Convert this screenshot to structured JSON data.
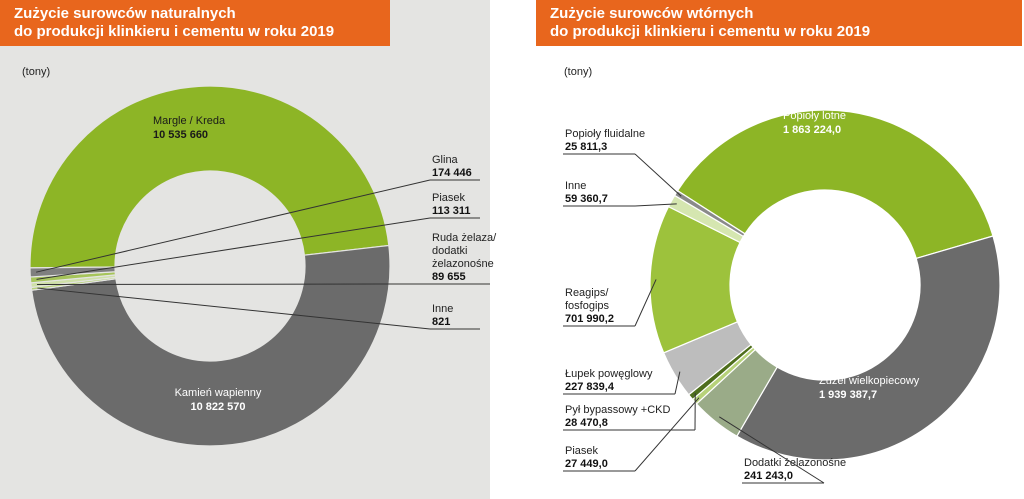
{
  "chart_data": [
    {
      "type": "donut",
      "title": "Zużycie surowców naturalnych\ndo produkcji klinkieru i cementu w roku 2019",
      "title_lines": [
        "Zużycie surowców naturalnych",
        "do produkcji klinkieru i cementu w roku 2019"
      ],
      "unit": "(tony)",
      "slices": [
        {
          "name": "Margle / Kreda",
          "value": 10535660,
          "label": "10 535 660",
          "color": "#8db526"
        },
        {
          "name": "Kamień wapienny",
          "value": 10822570,
          "label": "10 822 570",
          "color": "#6b6b6b"
        },
        {
          "name": "Inne",
          "value": 821,
          "label": "821",
          "color": "#b7d27a"
        },
        {
          "name": "Ruda żelaza/ dodatki żelazonośne",
          "value": 89655,
          "label": "89 655",
          "color": "#cfe0a8"
        },
        {
          "name": "Piasek",
          "value": 113311,
          "label": "113 311",
          "color": "#a6c45a"
        },
        {
          "name": "Glina",
          "value": 174446,
          "label": "174 446",
          "color": "#7f7f7f"
        }
      ]
    },
    {
      "type": "donut",
      "title": "Zużycie surowców wtórnych\ndo produkcji klinkieru i cementu w roku 2019",
      "title_lines": [
        "Zużycie surowców wtórnych",
        "do produkcji klinkieru i cementu w roku 2019"
      ],
      "unit": "(tony)",
      "slices": [
        {
          "name": "Popioły lotne",
          "value": 1863224.0,
          "label": "1 863 224,0",
          "color": "#8db526"
        },
        {
          "name": "Żużel wielkopiecowy",
          "value": 1939387.7,
          "label": "1 939 387,7",
          "color": "#6b6b6b"
        },
        {
          "name": "Dodatki żelazonośne",
          "value": 241243.0,
          "label": "241 243,0",
          "color": "#9aab88"
        },
        {
          "name": "Piasek",
          "value": 27449.0,
          "label": "27 449,0",
          "color": "#b7d27a"
        },
        {
          "name": "Pył bypassowy +CKD",
          "value": 28470.8,
          "label": "28 470,8",
          "color": "#4e6e1c"
        },
        {
          "name": "Łupek powęglowy",
          "value": 227839.4,
          "label": "227 839,4",
          "color": "#bdbdbd"
        },
        {
          "name": "Reagips/ fosfogips",
          "value": 701990.2,
          "label": "701 990,2",
          "color": "#9dc23c"
        },
        {
          "name": "Inne",
          "value": 59360.7,
          "label": "59 360,7",
          "color": "#d5e6b0"
        },
        {
          "name": "Popioły fluidalne",
          "value": 25811.3,
          "label": "25 811,3",
          "color": "#8a8a8a"
        }
      ]
    }
  ]
}
